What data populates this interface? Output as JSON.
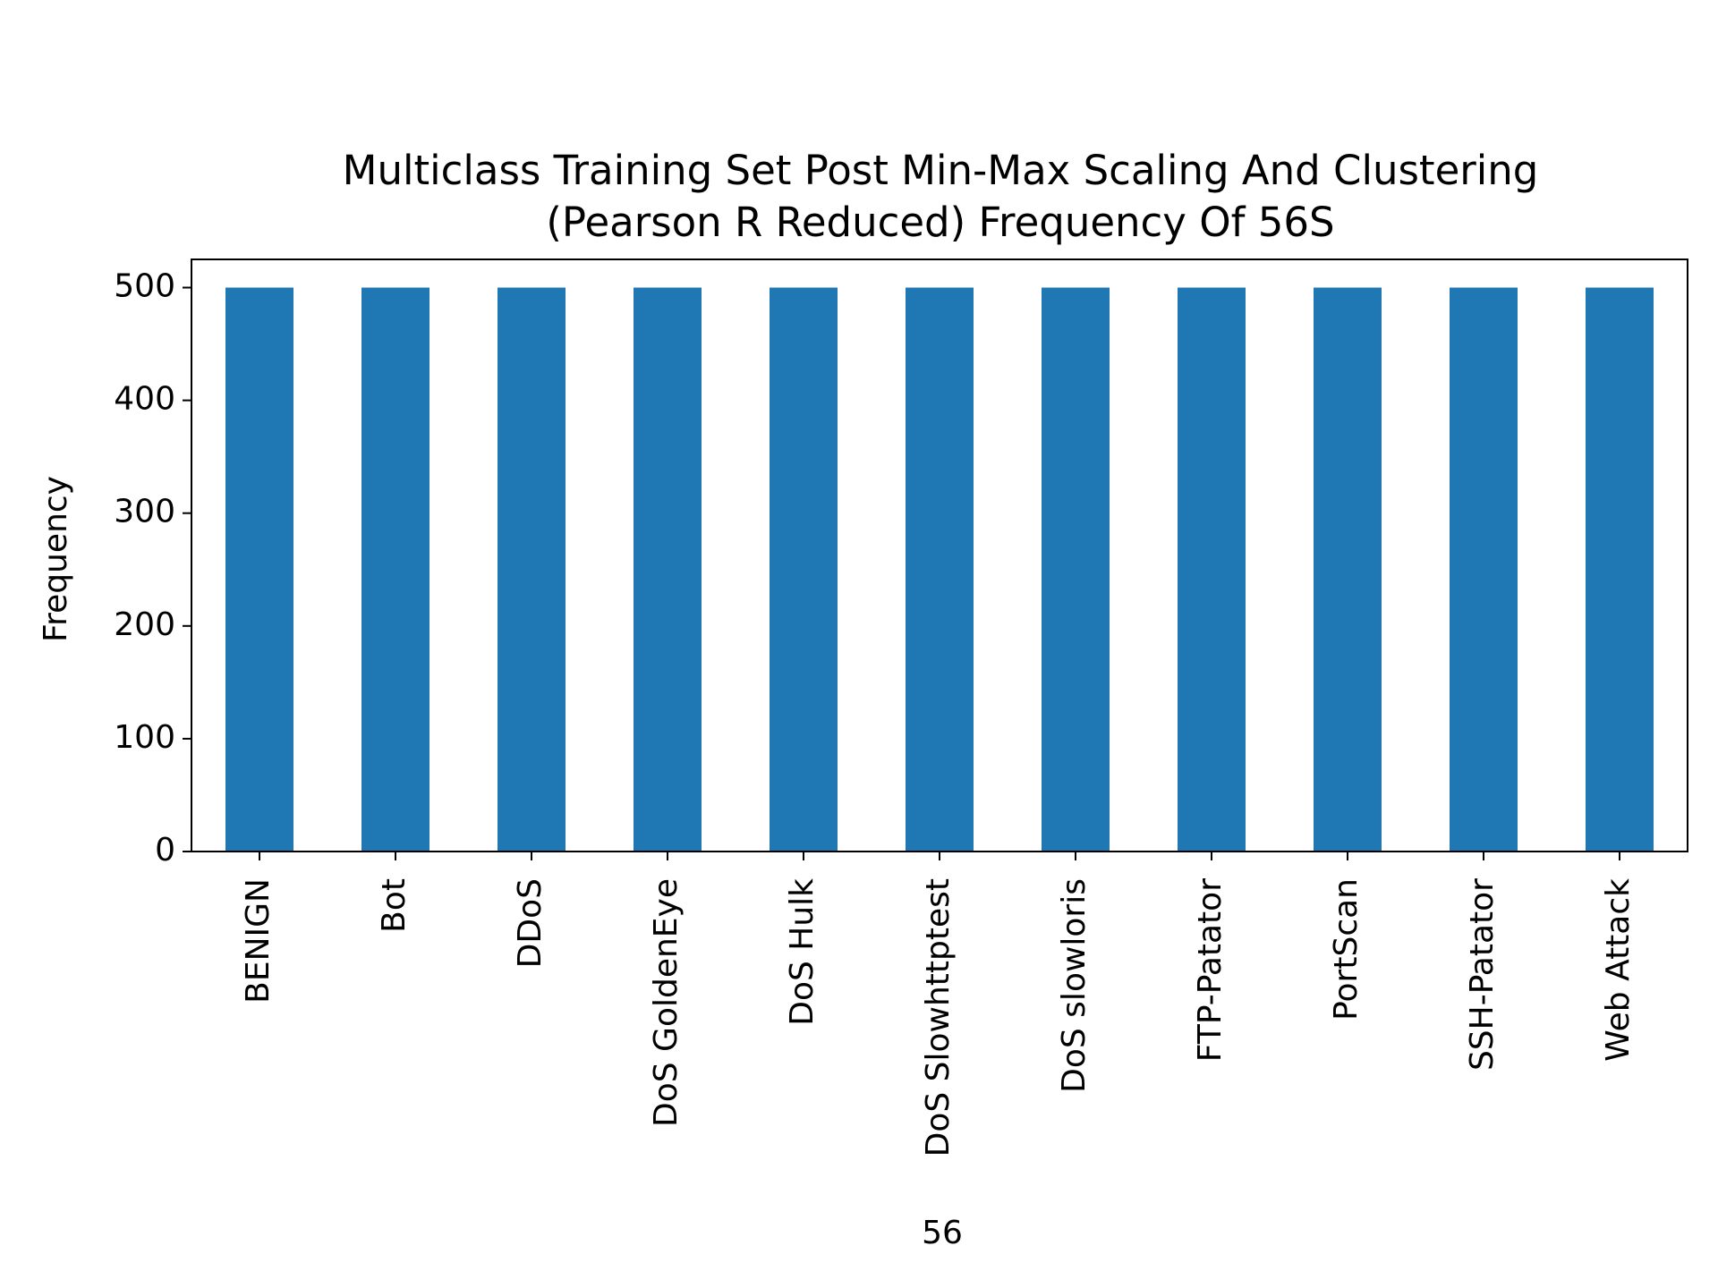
{
  "chart_data": {
    "type": "bar",
    "title": [
      "Multiclass Training Set Post Min-Max Scaling And Clustering",
      "(Pearson R Reduced) Frequency Of  56S"
    ],
    "xlabel": "56",
    "ylabel": "Frequency",
    "categories": [
      "BENIGN",
      "Bot",
      "DDoS",
      "DoS GoldenEye",
      "DoS Hulk",
      "DoS Slowhttptest",
      "DoS slowloris",
      "FTP-Patator",
      "PortScan",
      "SSH-Patator",
      "Web Attack"
    ],
    "values": [
      500,
      500,
      500,
      500,
      500,
      500,
      500,
      500,
      500,
      500,
      500
    ],
    "ylim": [
      0,
      525
    ],
    "yticks": [
      0,
      100,
      200,
      300,
      400,
      500
    ],
    "bar_color": "#1f77b4",
    "grid": false,
    "legend": "none"
  }
}
